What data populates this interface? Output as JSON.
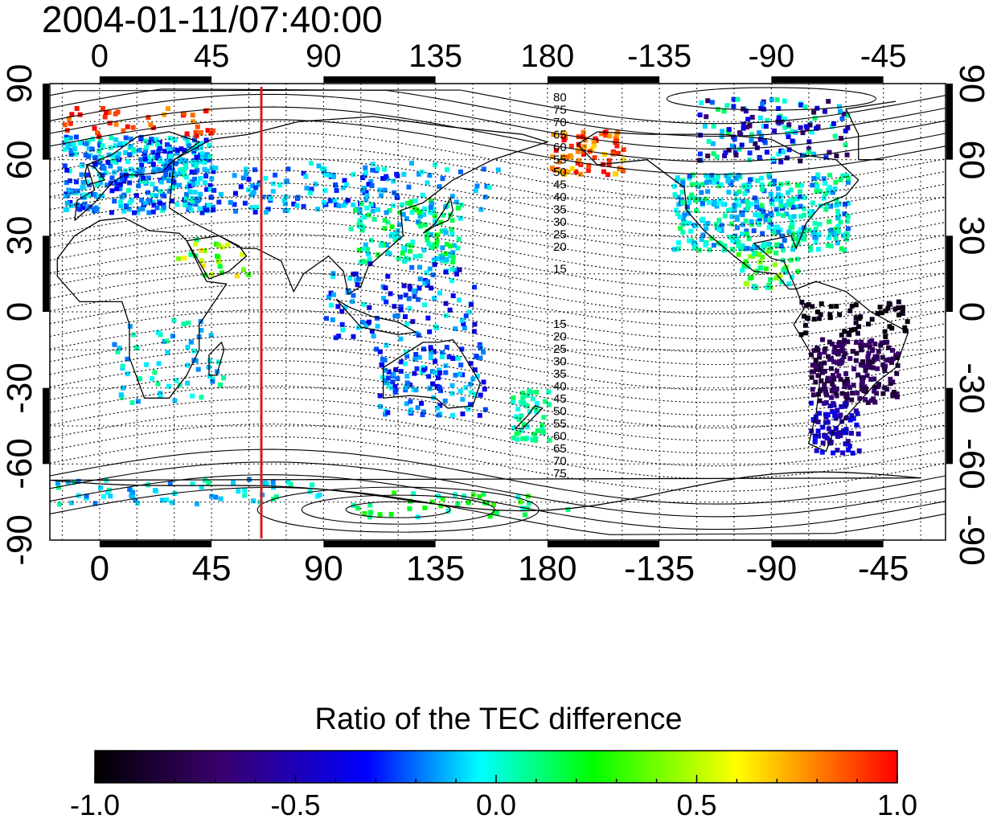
{
  "title": "2004-01-11/07:40:00",
  "map": {
    "longitude_ticks_top": [
      "0",
      "45",
      "90",
      "135",
      "180",
      "-135",
      "-90",
      "-45"
    ],
    "longitude_ticks_bottom": [
      "0",
      "45",
      "90",
      "135",
      "180",
      "-135",
      "-90",
      "-45"
    ],
    "latitude_ticks_left": [
      "90",
      "60",
      "30",
      "0",
      "-30",
      "-60",
      "-90"
    ],
    "latitude_ticks_right": [
      "90",
      "60",
      "30",
      "0",
      "-30",
      "-60",
      "-90"
    ],
    "longitude_start": -20,
    "longitude_span": 360,
    "latitude_range": [
      -90,
      90
    ],
    "grid": "dotted",
    "marker_line_longitude": 65,
    "marker_line_color": "#d21e1e",
    "contour_labels_north": [
      "80",
      "75",
      "70",
      "65",
      "60",
      "55",
      "50",
      "45",
      "40",
      "35",
      "30",
      "25",
      "20",
      "15"
    ],
    "contour_labels_south": [
      "15",
      "20",
      "25",
      "30",
      "35",
      "40",
      "45",
      "50",
      "55",
      "60",
      "65",
      "70",
      "75"
    ]
  },
  "colorbar": {
    "title": "Ratio of the TEC difference",
    "min": -1.0,
    "max": 1.0,
    "tick_labels": [
      "-1.0",
      "-0.5",
      "0.0",
      "0.5",
      "1.0"
    ],
    "colormap_stops": [
      "#000000",
      "#3a0070",
      "#0000ff",
      "#00ffff",
      "#00ff00",
      "#ffff00",
      "#ff0000"
    ]
  }
}
